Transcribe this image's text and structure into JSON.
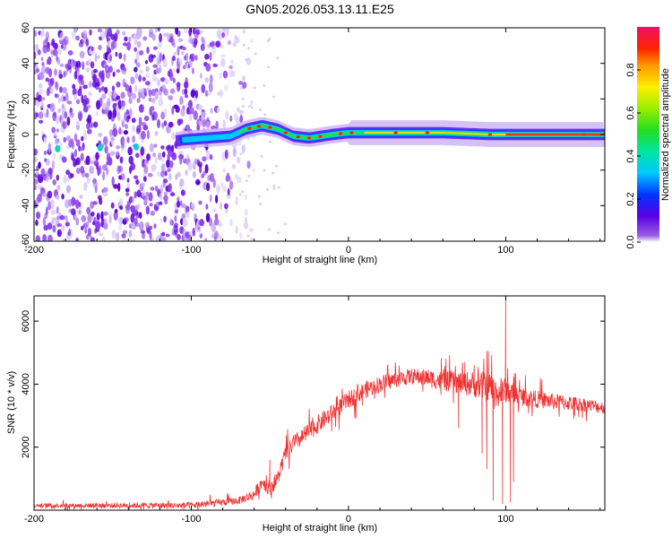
{
  "title": "GN05.2026.053.13.11.E25",
  "colors": {
    "snr_line": "#ee3333",
    "frame": "#000000"
  },
  "chart_data": [
    {
      "type": "heatmap",
      "xlabel": "Height of straight line (km)",
      "ylabel": "Frequency (Hz)",
      "xlim": [
        -200,
        163
      ],
      "ylim": [
        -60,
        60
      ],
      "xticks": [
        -200,
        -100,
        0,
        100
      ],
      "xtick_labels": [
        "-200",
        "-100",
        "0",
        "100"
      ],
      "yticks": [
        -60,
        -40,
        -20,
        0,
        20,
        40,
        60
      ],
      "ytick_labels": [
        "-60",
        "-40",
        "-20",
        "0",
        "20",
        "40",
        "60"
      ],
      "colorbar": {
        "label": "Normalized spectral amplitude",
        "range": [
          0,
          1
        ],
        "ticks": [
          0.0,
          0.2,
          0.4,
          0.6,
          0.8
        ],
        "tick_labels": [
          "0.0",
          "0.2",
          "0.4",
          "0.6",
          "0.8"
        ],
        "colormap": "rainbow (violet-blue-cyan-green-yellow-red-magenta)"
      },
      "ridge": {
        "description": "Dominant frequency ridge near 0 Hz",
        "points": [
          [
            -200,
            -8
          ],
          [
            -185,
            -8
          ],
          [
            -135,
            -7
          ],
          [
            -105,
            -3
          ],
          [
            -90,
            -2
          ],
          [
            -75,
            -1
          ],
          [
            -65,
            3
          ],
          [
            -55,
            5
          ],
          [
            -45,
            3
          ],
          [
            -35,
            -1
          ],
          [
            -25,
            -2
          ],
          [
            -10,
            0
          ],
          [
            0,
            1
          ],
          [
            30,
            1
          ],
          [
            60,
            1
          ],
          [
            90,
            0
          ],
          [
            120,
            0
          ],
          [
            163,
            0
          ]
        ]
      },
      "noise_region": [
        -200,
        -70
      ]
    },
    {
      "type": "line",
      "xlabel": "Height of straight line (km)",
      "ylabel": "SNR (10 * v/v)",
      "xlim": [
        -200,
        163
      ],
      "ylim": [
        0,
        6800
      ],
      "xticks": [
        -200,
        -100,
        0,
        100
      ],
      "xtick_labels": [
        "-200",
        "-100",
        "0",
        "100"
      ],
      "yticks": [
        2000,
        4000,
        6000
      ],
      "ytick_labels": [
        "2000",
        "4000",
        "6000"
      ],
      "series": [
        {
          "name": "SNR",
          "envelope": {
            "x": [
              -200,
              -150,
              -100,
              -80,
              -70,
              -60,
              -55,
              -50,
              -45,
              -40,
              -35,
              -30,
              -20,
              -10,
              0,
              10,
              20,
              30,
              40,
              50,
              60,
              70,
              80,
              90,
              95,
              100,
              105,
              110,
              130,
              150,
              163
            ],
            "y": [
              150,
              150,
              150,
              250,
              300,
              500,
              900,
              700,
              1000,
              1800,
              2100,
              2300,
              2700,
              3100,
              3500,
              3800,
              4000,
              4150,
              4250,
              4200,
              4100,
              4050,
              4000,
              3900,
              3700,
              3800,
              3700,
              3600,
              3450,
              3350,
              3250
            ]
          },
          "noise_amplitude": [
            [
              -200,
              60
            ],
            [
              -70,
              120
            ],
            [
              -50,
              250
            ],
            [
              -20,
              300
            ],
            [
              40,
              250
            ],
            [
              70,
              350
            ],
            [
              90,
              500
            ],
            [
              110,
              300
            ],
            [
              163,
              200
            ]
          ],
          "spikes": [
            [
              -50,
              1600
            ],
            [
              62,
              4800
            ],
            [
              74,
              4700
            ],
            [
              80,
              4600
            ],
            [
              97,
              4200
            ],
            [
              100,
              6800
            ],
            [
              85,
              1800
            ],
            [
              92,
              300
            ],
            [
              98,
              200
            ],
            [
              103,
              250
            ],
            [
              105,
              900
            ],
            [
              70,
              2600
            ],
            [
              88,
              1300
            ]
          ]
        }
      ]
    }
  ]
}
